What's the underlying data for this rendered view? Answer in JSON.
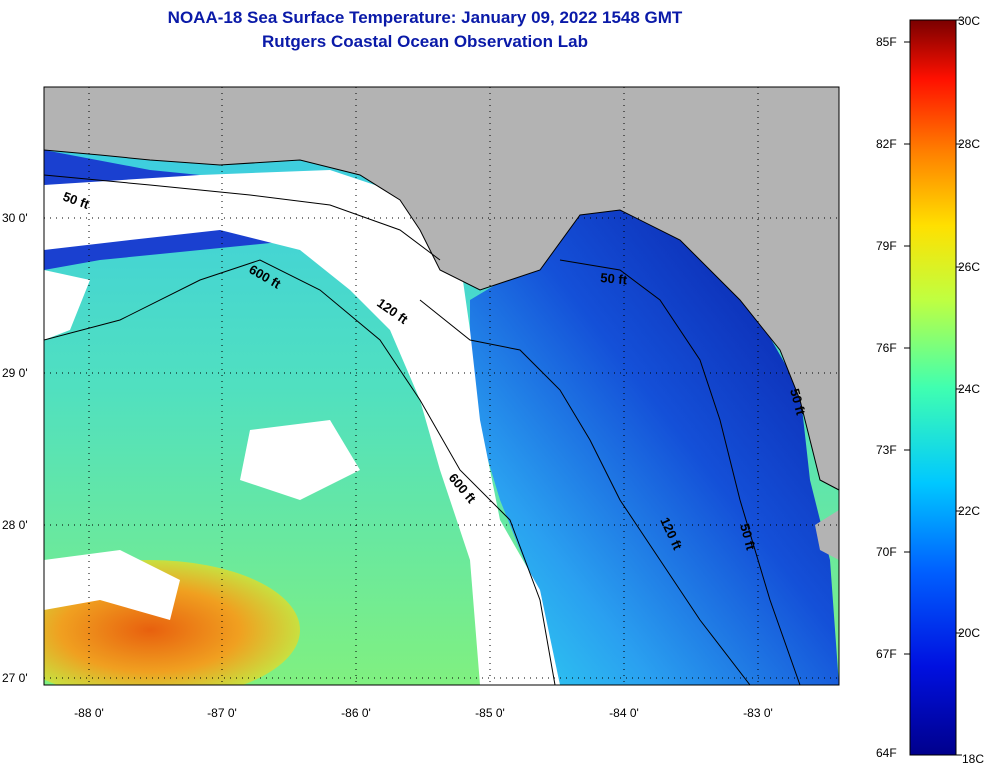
{
  "title_line1": "NOAA-18 Sea Surface Temperature:  January 09, 2022 1548 GMT",
  "title_line2": "Rutgers Coastal Ocean Observation Lab",
  "map": {
    "longitude_ticks": [
      "-88 0'",
      "-87 0'",
      "-86 0'",
      "-85 0'",
      "-84 0'",
      "-83 0'"
    ],
    "latitude_ticks": [
      "30 0'",
      "29 0'",
      "28 0'",
      "27 0'"
    ],
    "contour_labels": [
      "50 ft",
      "120 ft",
      "600 ft",
      "600 ft",
      "50 ft",
      "120 ft",
      "50 ft",
      "50 ft"
    ],
    "colors": {
      "land": "#b3b3b3",
      "cloud": "#ffffff",
      "cold": "#0a1aa0",
      "warm": "#f07010"
    }
  },
  "colorbar": {
    "fahrenheit": [
      "85F",
      "82F",
      "79F",
      "76F",
      "73F",
      "70F",
      "67F",
      "64F"
    ],
    "celsius": [
      "30C",
      "28C",
      "26C",
      "24C",
      "22C",
      "20C",
      "18C"
    ]
  }
}
